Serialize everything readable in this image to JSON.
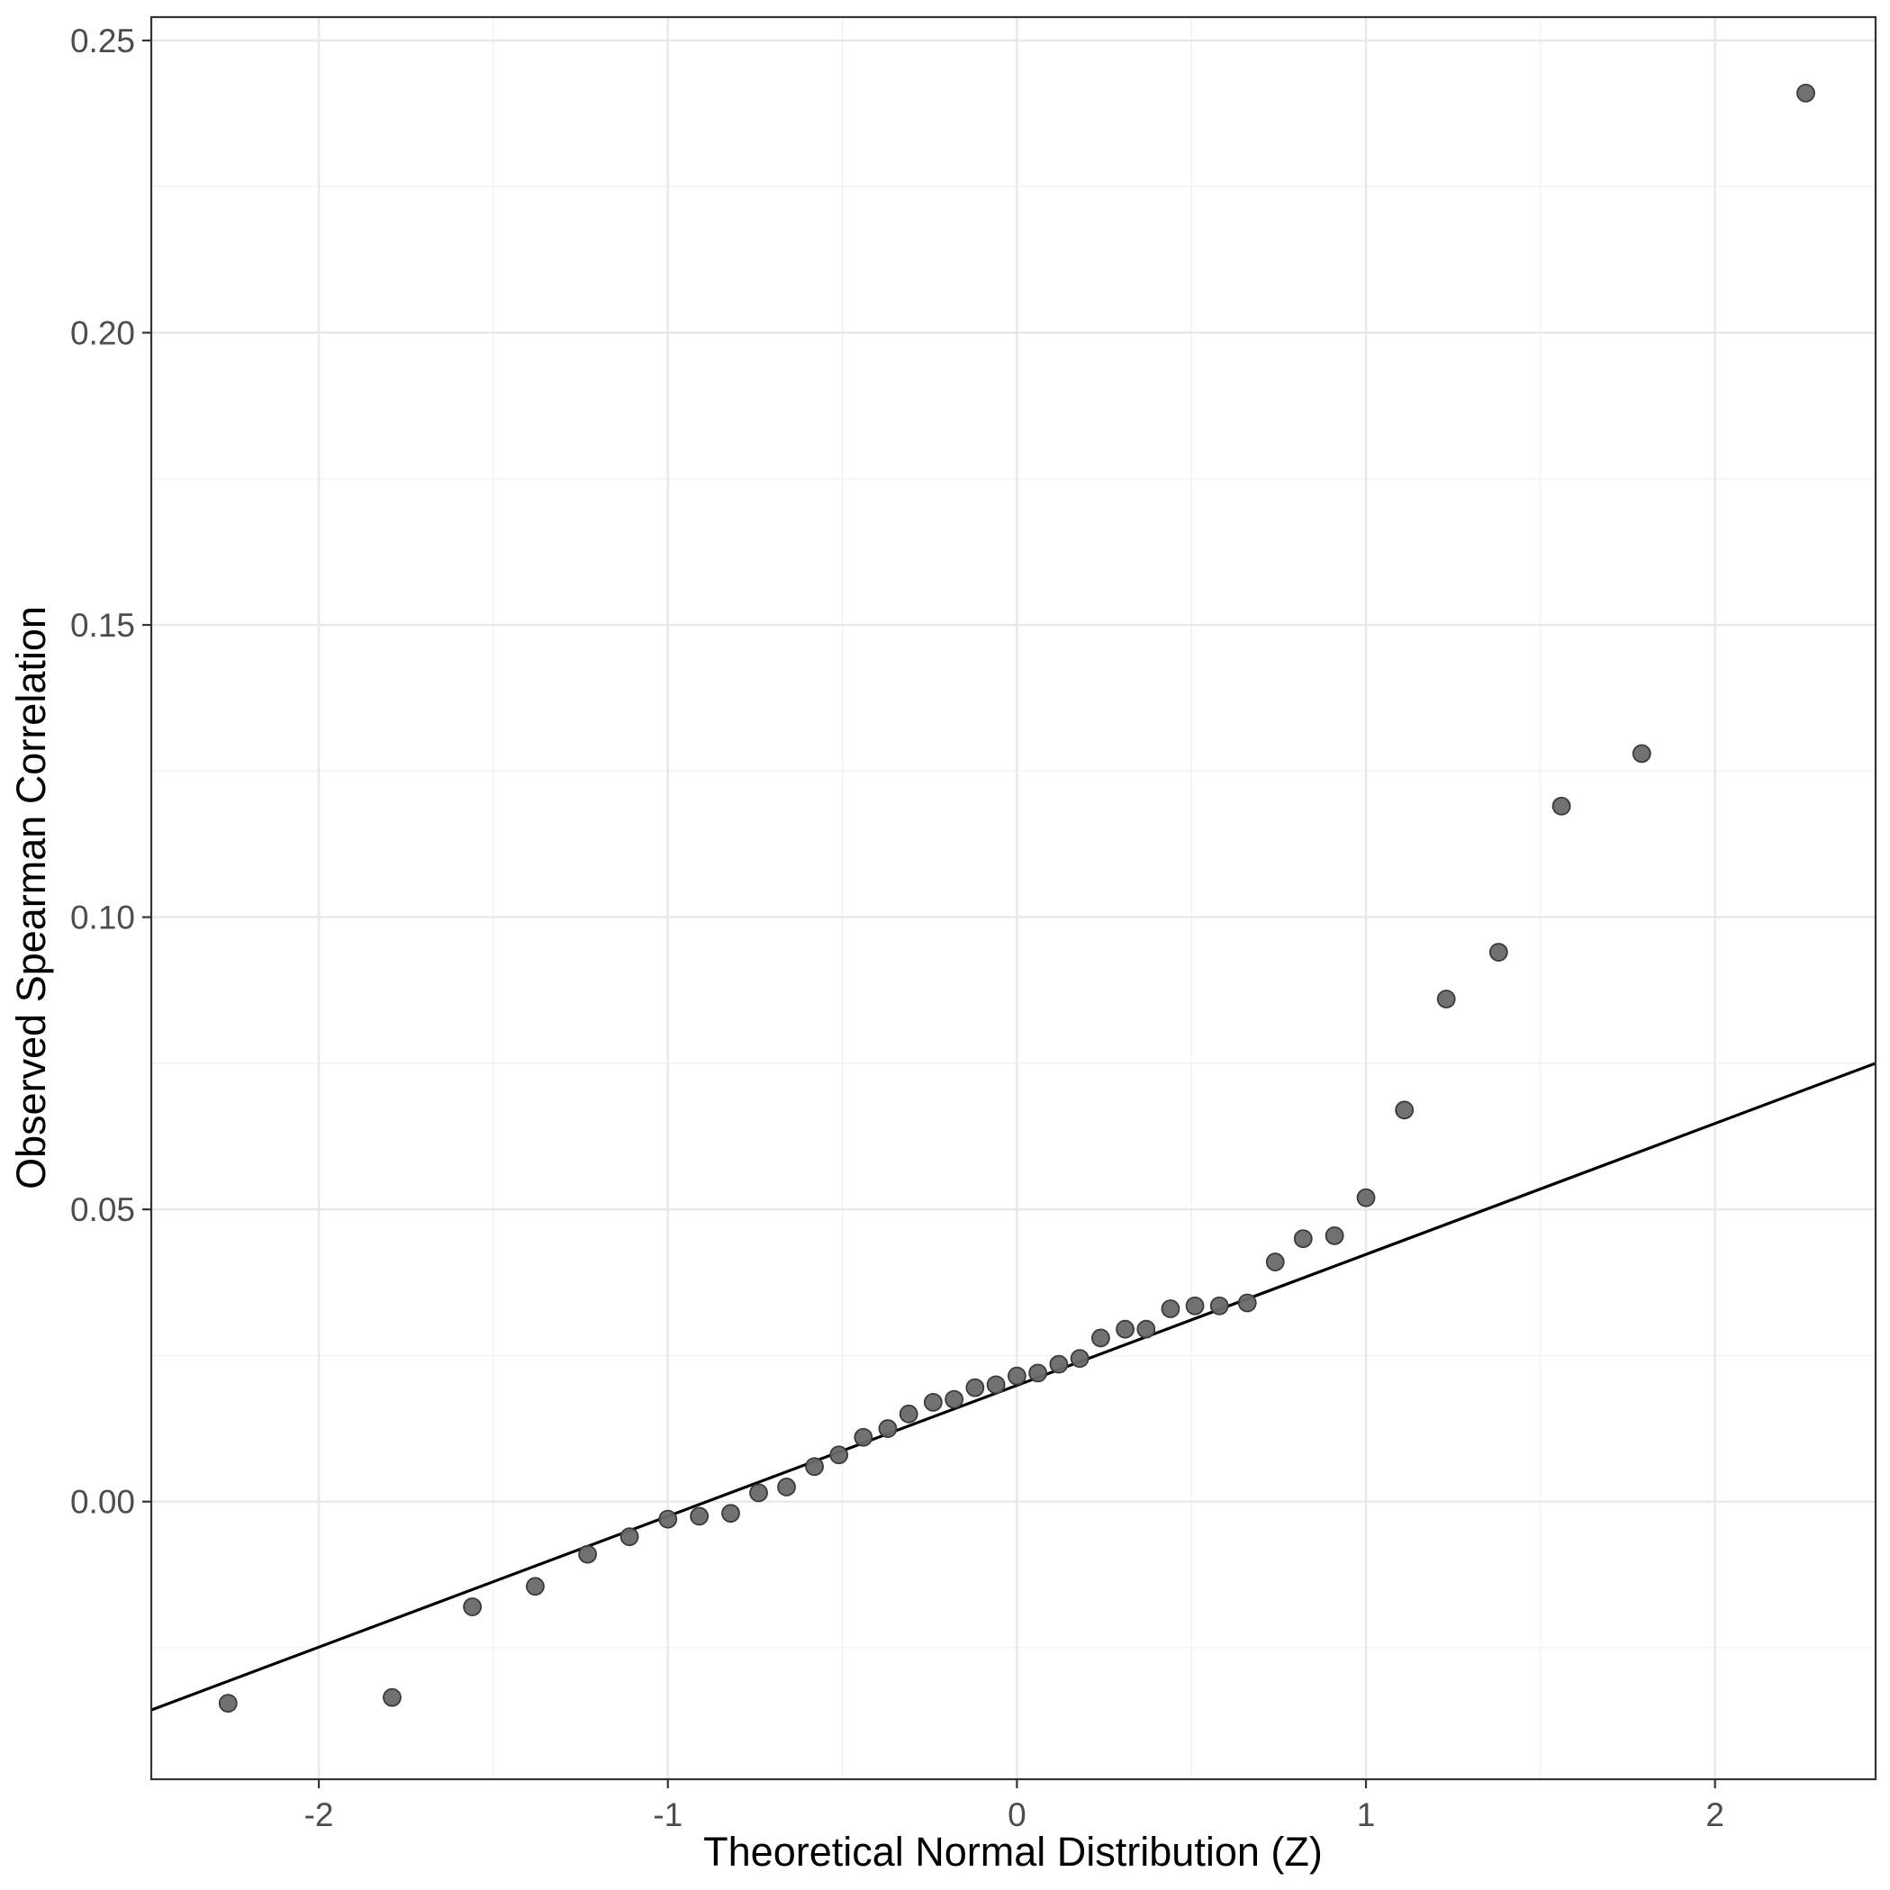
{
  "chart_data": {
    "type": "scatter",
    "title": "",
    "xlabel": "Theoretical Normal Distribution (Z)",
    "ylabel": "Observed Spearman Correlation",
    "xlim": [
      -2.48,
      2.46
    ],
    "ylim": [
      -0.0475,
      0.254
    ],
    "grid": true,
    "legend": "none",
    "x_ticks": {
      "values": [
        -2,
        -1,
        0,
        1,
        2
      ],
      "labels": [
        "-2",
        "-1",
        "0",
        "1",
        "2"
      ]
    },
    "y_ticks": {
      "values": [
        0.0,
        0.05,
        0.1,
        0.15,
        0.2,
        0.25
      ],
      "labels": [
        "0.00",
        "0.05",
        "0.10",
        "0.15",
        "0.20",
        "0.25"
      ]
    },
    "x_minor": [
      -1.5,
      -0.5,
      0.5,
      1.5
    ],
    "y_minor": [
      -0.025,
      0.025,
      0.075,
      0.125,
      0.175,
      0.225
    ],
    "ref_line": {
      "slope": 0.0224,
      "intercept": 0.0199
    },
    "points": [
      [
        -2.26,
        -0.0345
      ],
      [
        -1.79,
        -0.0335
      ],
      [
        -1.56,
        -0.018
      ],
      [
        -1.38,
        -0.0145
      ],
      [
        -1.23,
        -0.009
      ],
      [
        -1.11,
        -0.006
      ],
      [
        -1.0,
        -0.003
      ],
      [
        -0.91,
        -0.0025
      ],
      [
        -0.82,
        -0.002
      ],
      [
        -0.74,
        0.0015
      ],
      [
        -0.66,
        0.0025
      ],
      [
        -0.58,
        0.006
      ],
      [
        -0.51,
        0.008
      ],
      [
        -0.44,
        0.011
      ],
      [
        -0.37,
        0.0125
      ],
      [
        -0.31,
        0.015
      ],
      [
        -0.24,
        0.017
      ],
      [
        -0.18,
        0.0175
      ],
      [
        -0.12,
        0.0195
      ],
      [
        -0.06,
        0.02
      ],
      [
        0.0,
        0.0215
      ],
      [
        0.06,
        0.022
      ],
      [
        0.12,
        0.0235
      ],
      [
        0.18,
        0.0245
      ],
      [
        0.24,
        0.028
      ],
      [
        0.31,
        0.0295
      ],
      [
        0.37,
        0.0295
      ],
      [
        0.44,
        0.033
      ],
      [
        0.51,
        0.0335
      ],
      [
        0.58,
        0.0335
      ],
      [
        0.66,
        0.034
      ],
      [
        0.74,
        0.041
      ],
      [
        0.82,
        0.045
      ],
      [
        0.91,
        0.0455
      ],
      [
        1.0,
        0.052
      ],
      [
        1.11,
        0.067
      ],
      [
        1.23,
        0.086
      ],
      [
        1.38,
        0.094
      ],
      [
        1.56,
        0.119
      ],
      [
        1.79,
        0.128
      ],
      [
        2.26,
        0.241
      ]
    ],
    "colors": {
      "point_fill": "#696969",
      "point_stroke": "#3a3a3a",
      "ref_line": "#000000",
      "grid_major": "#e8e8e8",
      "grid_minor": "#f2f2f2",
      "panel_border": "#333333",
      "tick_mark": "#333333",
      "panel_bg": "#ffffff"
    }
  }
}
